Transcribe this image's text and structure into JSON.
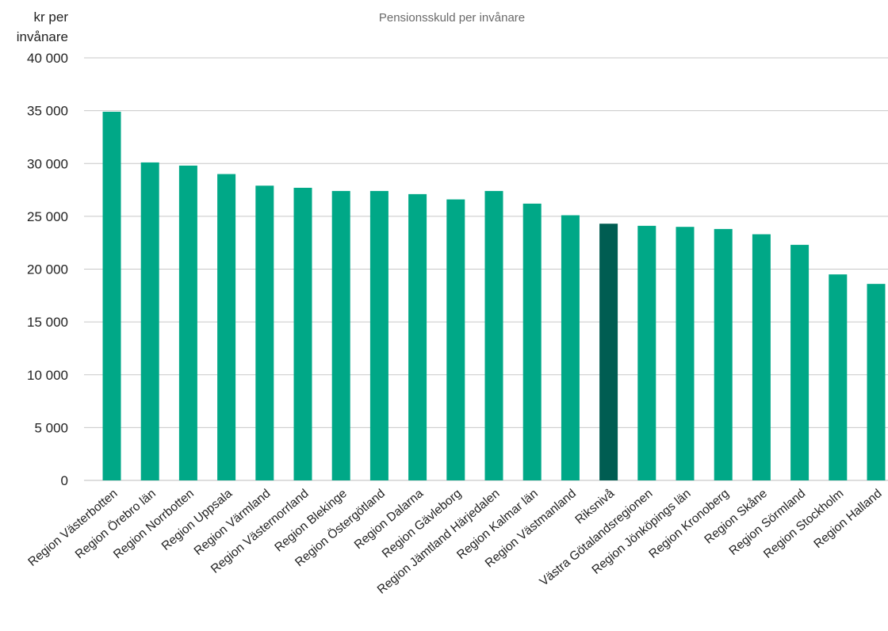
{
  "chart_data": {
    "type": "bar",
    "title": "Pensionsskuld per invånare",
    "ylabel_lines": [
      "kr per",
      "invånare"
    ],
    "xlabel": "",
    "ylim": [
      0,
      40000
    ],
    "yticks": [
      0,
      5000,
      10000,
      15000,
      20000,
      25000,
      30000,
      35000,
      40000
    ],
    "ytick_labels": [
      "0",
      "5 000",
      "10 000",
      "15 000",
      "20 000",
      "25 000",
      "30 000",
      "35 000",
      "40 000"
    ],
    "grid": true,
    "categories": [
      "Region Västerbotten",
      "Region Örebro län",
      "Region Norrbotten",
      "Region Uppsala",
      "Region Värmland",
      "Region Västernorrland",
      "Region Blekinge",
      "Region Östergötland",
      "Region Dalarna",
      "Region Gävleborg",
      "Region Jämtland Härjedalen",
      "Region Kalmar län",
      "Region Västmanland",
      "Riksnivå",
      "Västra Götalandsregionen",
      "Region Jönköpings län",
      "Region Kronoberg",
      "Region Skåne",
      "Region Sörmland",
      "Region Stockholm",
      "Region Halland"
    ],
    "values": [
      34900,
      30100,
      29800,
      29000,
      27900,
      27700,
      27400,
      27400,
      27100,
      26600,
      27400,
      26200,
      25100,
      24300,
      24100,
      24000,
      23800,
      23300,
      22300,
      19500,
      18600
    ],
    "colors": {
      "default": "#00a887",
      "highlight": "#005d52",
      "highlight_category": "Riksnivå"
    }
  }
}
